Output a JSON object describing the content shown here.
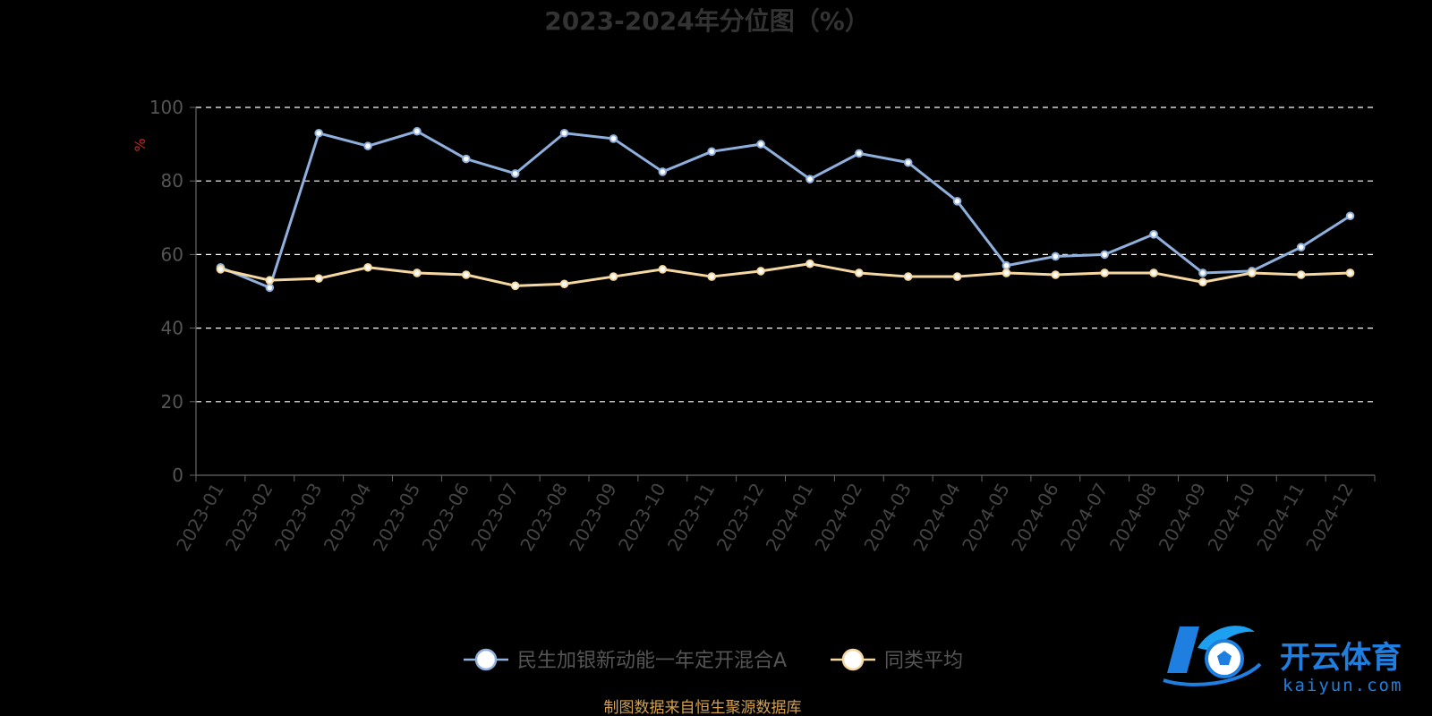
{
  "chart_data": {
    "type": "line",
    "title": "2023-2024年分位图（%）",
    "ylabel": "%",
    "ylim": [
      0,
      100
    ],
    "yticks": [
      0,
      20,
      40,
      60,
      80,
      100
    ],
    "grid": true,
    "legend_position": "bottom-center",
    "categories": [
      "2023-01",
      "2023-02",
      "2023-03",
      "2023-04",
      "2023-05",
      "2023-06",
      "2023-07",
      "2023-08",
      "2023-09",
      "2023-10",
      "2023-11",
      "2023-12",
      "2024-01",
      "2024-02",
      "2024-03",
      "2024-04",
      "2024-05",
      "2024-06",
      "2024-07",
      "2024-08",
      "2024-09",
      "2024-10",
      "2024-11",
      "2024-12"
    ],
    "series": [
      {
        "name": "民生加银新动能一年定开混合A",
        "color": "#8fb0dd",
        "values": [
          56.5,
          51.0,
          93.0,
          89.5,
          93.5,
          86.0,
          82.0,
          93.0,
          91.5,
          82.5,
          88.0,
          90.0,
          80.5,
          87.5,
          85.0,
          74.5,
          57.0,
          59.5,
          60.0,
          65.5,
          55.0,
          55.5,
          62.0,
          70.5
        ]
      },
      {
        "name": "同类平均",
        "color": "#f5d7a0",
        "values": [
          56.0,
          53.0,
          53.5,
          56.5,
          55.0,
          54.5,
          51.5,
          52.0,
          54.0,
          56.0,
          54.0,
          55.5,
          57.5,
          55.0,
          54.0,
          54.0,
          55.0,
          54.5,
          55.0,
          55.0,
          52.5,
          55.0,
          54.5,
          55.0
        ]
      }
    ],
    "source": "制图数据来自恒生聚源数据库"
  },
  "watermark": {
    "brand": "开云体育",
    "domain": "kaiyun.com",
    "icon": "k-soccer-ball-logo",
    "accent": "#1e7fe0"
  }
}
